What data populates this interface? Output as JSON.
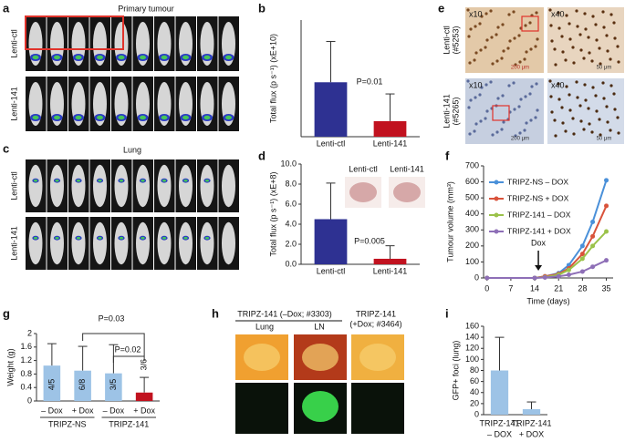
{
  "panel_labels": [
    "a",
    "b",
    "c",
    "d",
    "e",
    "f",
    "g",
    "h",
    "i"
  ],
  "panel_a": {
    "title": "Primary tumour",
    "rows": [
      "Lenti-ctl",
      "Lenti-141"
    ]
  },
  "panel_c": {
    "title": "Lung",
    "rows": [
      "Lenti-ctl",
      "Lenti-141"
    ]
  },
  "panel_e": {
    "rows": [
      [
        "Lenti-ctl",
        "(#5253)"
      ],
      [
        "Lenti-141",
        "(#5265)"
      ]
    ],
    "magnifications": [
      "x10",
      "x40",
      "x10",
      "x40"
    ],
    "scale_bars": [
      "200 μm",
      "50 μm",
      "200 μm",
      "50 μm"
    ]
  },
  "panel_h": {
    "group_left": "TRIPZ-141 (–Dox; #3303)",
    "tissues": [
      "Lung",
      "LN"
    ],
    "group_right": [
      "TRIPZ-141",
      "(+Dox; #3464)"
    ]
  },
  "chart_data": [
    {
      "type": "bar",
      "ylabel": "Total flux (p s⁻¹) (xE+10)",
      "categories": [
        "Lenti-ctl",
        "Lenti-141"
      ],
      "values": [
        1.4,
        0.4
      ],
      "errors": [
        1.05,
        0.7
      ],
      "colors": [
        "#2e3192",
        "#c1121f"
      ],
      "ylim": [
        0,
        3
      ],
      "annotations": [
        "P=0.01"
      ]
    },
    {
      "type": "bar",
      "ylabel": "Total flux (p s⁻¹) (xE+8)",
      "categories": [
        "Lenti-ctl",
        "Lenti-141"
      ],
      "values": [
        4.5,
        0.55
      ],
      "errors": [
        3.6,
        1.3
      ],
      "colors": [
        "#2e3192",
        "#c1121f"
      ],
      "ylim": [
        0,
        10
      ],
      "yticks": [
        {
          "value": 0,
          "label": "0.0"
        },
        {
          "value": 2,
          "label": "2.0"
        },
        {
          "value": 4,
          "label": "4.0"
        },
        {
          "value": 6,
          "label": "6.0"
        },
        {
          "value": 8,
          "label": "8.0"
        },
        {
          "value": 10,
          "label": "10.0"
        }
      ],
      "annotations": [
        "P=0.005"
      ],
      "inset_labels": [
        "Lenti-ctl",
        "Lenti-141"
      ]
    },
    {
      "type": "line",
      "xlabel": "Time (days)",
      "ylabel": "Tumour volume (mm³)",
      "x": [
        0,
        14,
        17,
        21,
        24,
        28,
        31,
        35
      ],
      "xlim": [
        -1,
        37
      ],
      "xticks": [
        0,
        7,
        14,
        21,
        28,
        35
      ],
      "ylim": [
        0,
        700
      ],
      "yticks": [
        0,
        100,
        200,
        300,
        400,
        500,
        600,
        700
      ],
      "annotations": [
        "Dox"
      ],
      "series": [
        {
          "name": "TRIPZ-NS – DOX",
          "color": "#4a90d9",
          "values": [
            0,
            0,
            10,
            30,
            80,
            200,
            350,
            610
          ]
        },
        {
          "name": "TRIPZ-NS + DOX",
          "color": "#d9533b",
          "values": [
            0,
            0,
            10,
            25,
            60,
            150,
            260,
            450
          ]
        },
        {
          "name": "TRIPZ-141 – DOX",
          "color": "#9bc24a",
          "values": [
            0,
            0,
            5,
            20,
            50,
            120,
            200,
            290
          ]
        },
        {
          "name": "TRIPZ-141 + DOX",
          "color": "#8e6fb7",
          "values": [
            0,
            0,
            3,
            10,
            20,
            40,
            70,
            110
          ]
        }
      ]
    },
    {
      "type": "bar",
      "ylabel": "Weight (g)",
      "categories": [
        "– Dox",
        "+ Dox",
        "– Dox",
        "+ Dox"
      ],
      "groups": [
        "TRIPZ-NS",
        "TRIPZ-141"
      ],
      "values": [
        1.05,
        0.9,
        0.82,
        0.25
      ],
      "errors": [
        0.65,
        0.72,
        0.85,
        0.45
      ],
      "bar_labels": [
        "4/5",
        "6/8",
        "3/5",
        "3/6"
      ],
      "colors": [
        "#9dc3e6",
        "#9dc3e6",
        "#9dc3e6",
        "#c1121f"
      ],
      "ylim": [
        0,
        2
      ],
      "yticks": [
        0,
        0.4,
        0.8,
        1.2,
        1.6,
        2
      ],
      "annotations": [
        "P=0.03",
        "P=0.02"
      ]
    },
    {
      "type": "bar",
      "ylabel": "GFP+ foci (lung)",
      "categories": [
        [
          "TRIPZ-141",
          "– DOX"
        ],
        [
          "TRIPZ-141",
          "+ DOX"
        ]
      ],
      "values": [
        80,
        10
      ],
      "errors": [
        60,
        13
      ],
      "colors": [
        "#9dc3e6",
        "#9dc3e6"
      ],
      "ylim": [
        0,
        160
      ],
      "yticks": [
        0,
        20,
        40,
        60,
        80,
        100,
        120,
        140,
        160
      ]
    }
  ]
}
